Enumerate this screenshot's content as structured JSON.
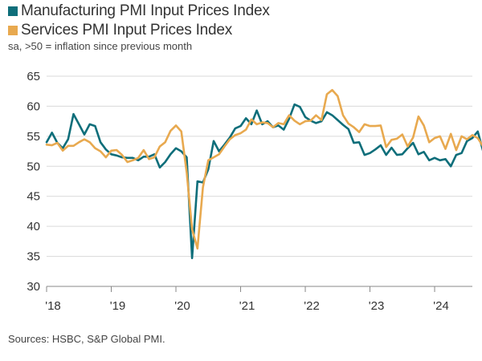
{
  "legend": [
    {
      "label": "Manufacturing PMI Input Prices Index",
      "color": "#0e6e7a"
    },
    {
      "label": "Services PMI Input Prices Index",
      "color": "#e8a94f"
    }
  ],
  "subtitle": "sa, >50 = inflation since previous month",
  "source": "Sources: HSBC, S&P Global PMI.",
  "chart_data": {
    "type": "line",
    "title": "",
    "xlabel": "",
    "ylabel": "",
    "ylim": [
      30,
      65
    ],
    "yticks": [
      30,
      35,
      40,
      45,
      50,
      55,
      60,
      65
    ],
    "xlim": [
      "2018-01",
      "2024-08"
    ],
    "xticks": [
      {
        "label": "'18",
        "date": "2018-01"
      },
      {
        "label": "'19",
        "date": "2019-01"
      },
      {
        "label": "'20",
        "date": "2020-01"
      },
      {
        "label": "'21",
        "date": "2021-01"
      },
      {
        "label": "'22",
        "date": "2022-01"
      },
      {
        "label": "'23",
        "date": "2023-01"
      },
      {
        "label": "'24",
        "date": "2024-01"
      }
    ],
    "grid": "horizontal",
    "series": [
      {
        "name": "Manufacturing PMI Input Prices Index",
        "color": "#0e6e7a",
        "points": [
          [
            "2018-01",
            54.0
          ],
          [
            "2018-02",
            55.6
          ],
          [
            "2018-03",
            53.9
          ],
          [
            "2018-04",
            53.0
          ],
          [
            "2018-05",
            54.5
          ],
          [
            "2018-06",
            58.7
          ],
          [
            "2018-07",
            57.0
          ],
          [
            "2018-08",
            55.3
          ],
          [
            "2018-09",
            57.0
          ],
          [
            "2018-10",
            56.7
          ],
          [
            "2018-11",
            54.0
          ],
          [
            "2018-12",
            52.8
          ],
          [
            "2019-01",
            52.0
          ],
          [
            "2019-02",
            51.8
          ],
          [
            "2019-03",
            51.5
          ],
          [
            "2019-04",
            51.4
          ],
          [
            "2019-05",
            51.4
          ],
          [
            "2019-06",
            51.0
          ],
          [
            "2019-07",
            51.6
          ],
          [
            "2019-08",
            51.6
          ],
          [
            "2019-09",
            52.0
          ],
          [
            "2019-10",
            49.8
          ],
          [
            "2019-11",
            50.7
          ],
          [
            "2019-12",
            52.0
          ],
          [
            "2020-01",
            53.0
          ],
          [
            "2020-02",
            52.5
          ],
          [
            "2020-03",
            51.5
          ],
          [
            "2020-04",
            34.7
          ],
          [
            "2020-05",
            47.5
          ],
          [
            "2020-06",
            47.3
          ],
          [
            "2020-07",
            49.5
          ],
          [
            "2020-08",
            54.2
          ],
          [
            "2020-09",
            52.5
          ],
          [
            "2020-10",
            53.6
          ],
          [
            "2020-11",
            54.8
          ],
          [
            "2020-12",
            56.3
          ],
          [
            "2021-01",
            56.7
          ],
          [
            "2021-02",
            58.0
          ],
          [
            "2021-03",
            57.0
          ],
          [
            "2021-04",
            59.3
          ],
          [
            "2021-05",
            57.0
          ],
          [
            "2021-06",
            57.5
          ],
          [
            "2021-07",
            56.5
          ],
          [
            "2021-08",
            56.8
          ],
          [
            "2021-09",
            56.1
          ],
          [
            "2021-10",
            57.9
          ],
          [
            "2021-11",
            60.3
          ],
          [
            "2021-12",
            59.9
          ],
          [
            "2022-01",
            58.2
          ],
          [
            "2022-02",
            57.6
          ],
          [
            "2022-03",
            57.2
          ],
          [
            "2022-04",
            57.5
          ],
          [
            "2022-05",
            59.0
          ],
          [
            "2022-06",
            58.5
          ],
          [
            "2022-07",
            57.7
          ],
          [
            "2022-08",
            56.9
          ],
          [
            "2022-09",
            56.2
          ],
          [
            "2022-10",
            53.9
          ],
          [
            "2022-11",
            54.0
          ],
          [
            "2022-12",
            51.9
          ],
          [
            "2023-01",
            52.2
          ],
          [
            "2023-02",
            52.8
          ],
          [
            "2023-03",
            53.5
          ],
          [
            "2023-04",
            51.9
          ],
          [
            "2023-05",
            53.1
          ],
          [
            "2023-06",
            51.9
          ],
          [
            "2023-07",
            52.0
          ],
          [
            "2023-08",
            53.0
          ],
          [
            "2023-09",
            53.9
          ],
          [
            "2023-10",
            52.0
          ],
          [
            "2023-11",
            52.4
          ],
          [
            "2023-12",
            51.0
          ],
          [
            "2024-01",
            51.4
          ],
          [
            "2024-02",
            51.0
          ],
          [
            "2024-03",
            51.2
          ],
          [
            "2024-04",
            50.0
          ],
          [
            "2024-05",
            51.9
          ],
          [
            "2024-06",
            52.2
          ],
          [
            "2024-07",
            54.2
          ],
          [
            "2024-08",
            54.7
          ],
          [
            "2024-09",
            55.8
          ],
          [
            "2024-10",
            52.5
          ]
        ]
      },
      {
        "name": "Services PMI Input Prices Index",
        "color": "#e8a94f",
        "points": [
          [
            "2018-01",
            53.6
          ],
          [
            "2018-02",
            53.5
          ],
          [
            "2018-03",
            53.9
          ],
          [
            "2018-04",
            52.6
          ],
          [
            "2018-05",
            53.4
          ],
          [
            "2018-06",
            53.4
          ],
          [
            "2018-07",
            54.0
          ],
          [
            "2018-08",
            54.5
          ],
          [
            "2018-09",
            54.0
          ],
          [
            "2018-10",
            53.0
          ],
          [
            "2018-11",
            52.5
          ],
          [
            "2018-12",
            51.5
          ],
          [
            "2019-01",
            52.6
          ],
          [
            "2019-02",
            52.7
          ],
          [
            "2019-03",
            51.9
          ],
          [
            "2019-04",
            50.7
          ],
          [
            "2019-05",
            51.0
          ],
          [
            "2019-06",
            51.4
          ],
          [
            "2019-07",
            52.7
          ],
          [
            "2019-08",
            51.2
          ],
          [
            "2019-09",
            51.5
          ],
          [
            "2019-10",
            53.3
          ],
          [
            "2019-11",
            54.0
          ],
          [
            "2019-12",
            55.9
          ],
          [
            "2020-01",
            56.8
          ],
          [
            "2020-02",
            55.8
          ],
          [
            "2020-03",
            49.0
          ],
          [
            "2020-04",
            39.5
          ],
          [
            "2020-05",
            36.3
          ],
          [
            "2020-06",
            46.5
          ],
          [
            "2020-07",
            51.0
          ],
          [
            "2020-08",
            51.5
          ],
          [
            "2020-09",
            52.0
          ],
          [
            "2020-10",
            53.3
          ],
          [
            "2020-11",
            54.5
          ],
          [
            "2020-12",
            55.2
          ],
          [
            "2021-01",
            55.5
          ],
          [
            "2021-02",
            56.1
          ],
          [
            "2021-03",
            57.8
          ],
          [
            "2021-04",
            57.0
          ],
          [
            "2021-05",
            57.3
          ],
          [
            "2021-06",
            57.2
          ],
          [
            "2021-07",
            56.5
          ],
          [
            "2021-08",
            57.2
          ],
          [
            "2021-09",
            57.0
          ],
          [
            "2021-10",
            58.5
          ],
          [
            "2021-11",
            57.6
          ],
          [
            "2021-12",
            57.0
          ],
          [
            "2022-01",
            57.5
          ],
          [
            "2022-02",
            57.6
          ],
          [
            "2022-03",
            58.5
          ],
          [
            "2022-04",
            57.7
          ],
          [
            "2022-05",
            62.0
          ],
          [
            "2022-06",
            62.7
          ],
          [
            "2022-07",
            61.7
          ],
          [
            "2022-08",
            58.5
          ],
          [
            "2022-09",
            57.1
          ],
          [
            "2022-10",
            56.5
          ],
          [
            "2022-11",
            55.7
          ],
          [
            "2022-12",
            57.0
          ],
          [
            "2023-01",
            56.7
          ],
          [
            "2023-02",
            56.7
          ],
          [
            "2023-03",
            56.8
          ],
          [
            "2023-04",
            53.2
          ],
          [
            "2023-05",
            54.4
          ],
          [
            "2023-06",
            54.6
          ],
          [
            "2023-07",
            55.3
          ],
          [
            "2023-08",
            53.3
          ],
          [
            "2023-09",
            54.8
          ],
          [
            "2023-10",
            58.3
          ],
          [
            "2023-11",
            56.8
          ],
          [
            "2023-12",
            54.0
          ],
          [
            "2024-01",
            54.7
          ],
          [
            "2024-02",
            55.0
          ],
          [
            "2024-03",
            52.9
          ],
          [
            "2024-04",
            55.4
          ],
          [
            "2024-05",
            52.7
          ],
          [
            "2024-06",
            55.0
          ],
          [
            "2024-07",
            54.5
          ],
          [
            "2024-08",
            55.2
          ],
          [
            "2024-09",
            54.7
          ],
          [
            "2024-10",
            53.3
          ]
        ]
      }
    ]
  }
}
